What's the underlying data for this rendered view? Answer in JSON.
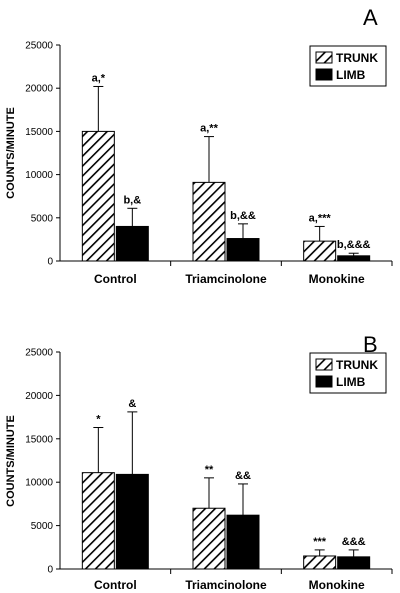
{
  "chart_data": [
    {
      "type": "bar",
      "panel_label": "A",
      "categories": [
        "Control",
        "Triamcinolone",
        "Monokine"
      ],
      "ylabel": "COUNTS/MINUTE",
      "ylim": [
        0,
        25000
      ],
      "yticks": [
        0,
        5000,
        10000,
        15000,
        20000,
        25000
      ],
      "grid": false,
      "legend_position": "top-right",
      "series": [
        {
          "name": "TRUNK",
          "pattern": "diagonal-hatch",
          "values": [
            15000,
            9100,
            2300
          ],
          "errors": [
            5200,
            5300,
            1700
          ],
          "annotations": [
            "a,*",
            "a,**",
            "a,***"
          ]
        },
        {
          "name": "LIMB",
          "pattern": "solid",
          "values": [
            4000,
            2600,
            600
          ],
          "errors": [
            2100,
            1700,
            300
          ],
          "annotations": [
            "b,&",
            "b,&&",
            "b,&&&"
          ]
        }
      ]
    },
    {
      "type": "bar",
      "panel_label": "B",
      "categories": [
        "Control",
        "Triamcinolone",
        "Monokine"
      ],
      "ylabel": "COUNTS/MINUTE",
      "ylim": [
        0,
        25000
      ],
      "yticks": [
        0,
        5000,
        10000,
        15000,
        20000,
        25000
      ],
      "grid": false,
      "legend_position": "top-right",
      "series": [
        {
          "name": "TRUNK",
          "pattern": "diagonal-hatch",
          "values": [
            11100,
            7000,
            1500
          ],
          "errors": [
            5200,
            3500,
            700
          ],
          "annotations": [
            "*",
            "**",
            "***"
          ]
        },
        {
          "name": "LIMB",
          "pattern": "solid",
          "values": [
            10900,
            6200,
            1400
          ],
          "errors": [
            7200,
            3600,
            800
          ],
          "annotations": [
            "&",
            "&&",
            "&&&"
          ]
        }
      ]
    }
  ],
  "colors": {
    "bar_fill": "#000000",
    "hatch_background": "#ffffff",
    "axis": "#000000"
  }
}
